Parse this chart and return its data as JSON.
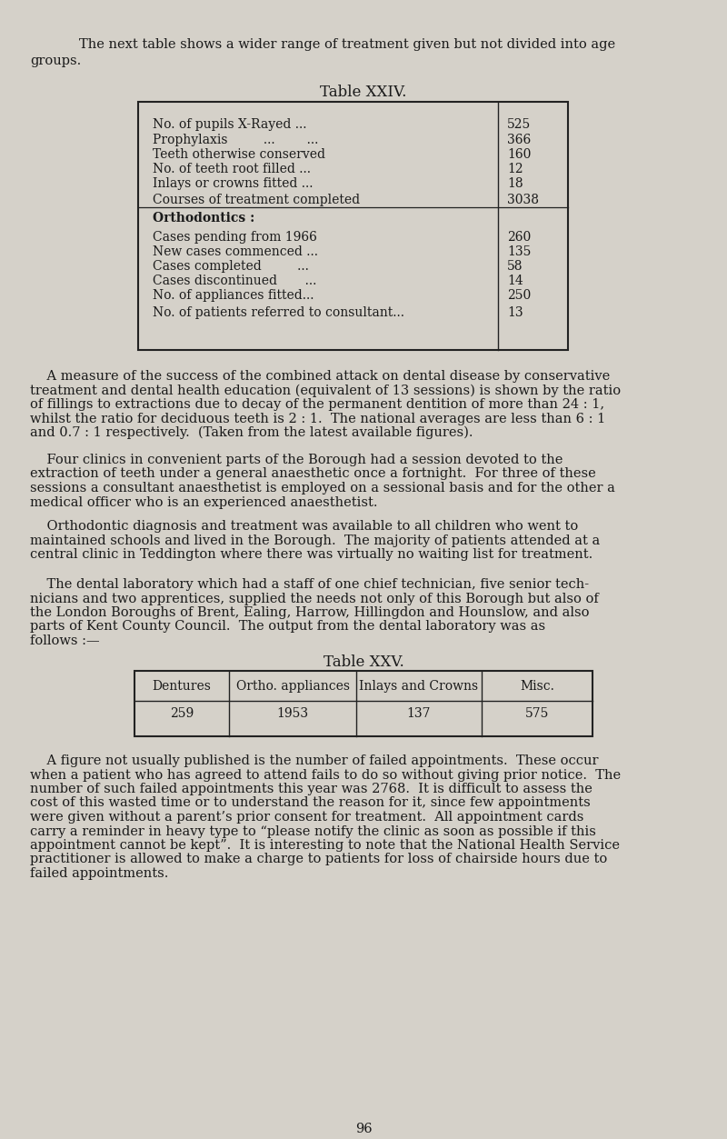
{
  "bg_color": "#d5d1c9",
  "text_color": "#1a1a1a",
  "page_number": "96",
  "intro_line1": "The next table shows a wider range of treatment given but not divided into age",
  "intro_line2": "groups.",
  "table24_title": "Table XXIV.",
  "table24_rows": [
    [
      "No. of pupils X-Rayed ...",
      "...          ...",
      "525"
    ],
    [
      "Prophylaxis         ...        ...",
      "...          ...",
      "366"
    ],
    [
      "Teeth otherwise conserved",
      "...          ...",
      "160"
    ],
    [
      "No. of teeth root filled ...",
      "...          ...",
      "12"
    ],
    [
      "Inlays or crowns fitted ...",
      "...          ...",
      "18"
    ],
    [
      "Courses of treatment completed",
      "...",
      "3038"
    ]
  ],
  "ortho_header": "Orthodontics :",
  "table24_ortho_rows": [
    [
      "Cases pending from 1966",
      "...          ...",
      "260"
    ],
    [
      "New cases commenced ...",
      "...          ...",
      "135"
    ],
    [
      "Cases completed         ...",
      "...          ...",
      "58"
    ],
    [
      "Cases discontinued       ...",
      "...          ...",
      "14"
    ],
    [
      "No. of appliances fitted...",
      "...          ...",
      "250"
    ],
    [
      "No. of patients referred to consultant...",
      "",
      "13"
    ]
  ],
  "para1_lines": [
    "    A measure of the success of the combined attack on dental disease by conservative",
    "treatment and dental health education (equivalent of 13 sessions) is shown by the ratio",
    "of fillings to extractions due to decay of the permanent dentition of more than 24 : 1,",
    "whilst the ratio for deciduous teeth is 2 : 1.  The national averages are less than 6 : 1",
    "and 0.7 : 1 respectively.  (Taken from the latest available figures)."
  ],
  "para2_lines": [
    "    Four clinics in convenient parts of the Borough had a session devoted to the",
    "extraction of teeth under a general anaesthetic once a fortnight.  For three of these",
    "sessions a consultant anaesthetist is employed on a sessional basis and for the other a",
    "medical officer who is an experienced anaesthetist."
  ],
  "para3_lines": [
    "    Orthodontic diagnosis and treatment was available to all children who went to",
    "maintained schools and lived in the Borough.  The majority of patients attended at a",
    "central clinic in Teddington where there was virtually no waiting list for treatment."
  ],
  "para4_lines": [
    "    The dental laboratory which had a staff of one chief technician, five senior tech-",
    "nicians and two apprentices, supplied the needs not only of this Borough but also of",
    "the London Boroughs of Brent, Ealing, Harrow, Hillingdon and Hounslow, and also",
    "parts of Kent County Council.  The output from the dental laboratory was as",
    "follows :—"
  ],
  "table25_title": "Table XXV.",
  "table25_headers": [
    "Dentures",
    "Ortho. appliances",
    "Inlays and Crowns",
    "Misc."
  ],
  "table25_values": [
    "259",
    "1953",
    "137",
    "575"
  ],
  "para5_lines": [
    "    A figure not usually published is the number of failed appointments.  These occur",
    "when a patient who has agreed to attend fails to do so without giving prior notice.  The",
    "number of such failed appointments this year was 2768.  It is difficult to assess the",
    "cost of this wasted time or to understand the reason for it, since few appointments",
    "were given without a parent’s prior consent for treatment.  All appointment cards",
    "carry a reminder in heavy type to “please notify the clinic as soon as possible if this",
    "appointment cannot be kept”.  It is interesting to note that the National Health Service",
    "practitioner is allowed to make a charge to patients for loss of chairside hours due to",
    "failed appointments."
  ]
}
